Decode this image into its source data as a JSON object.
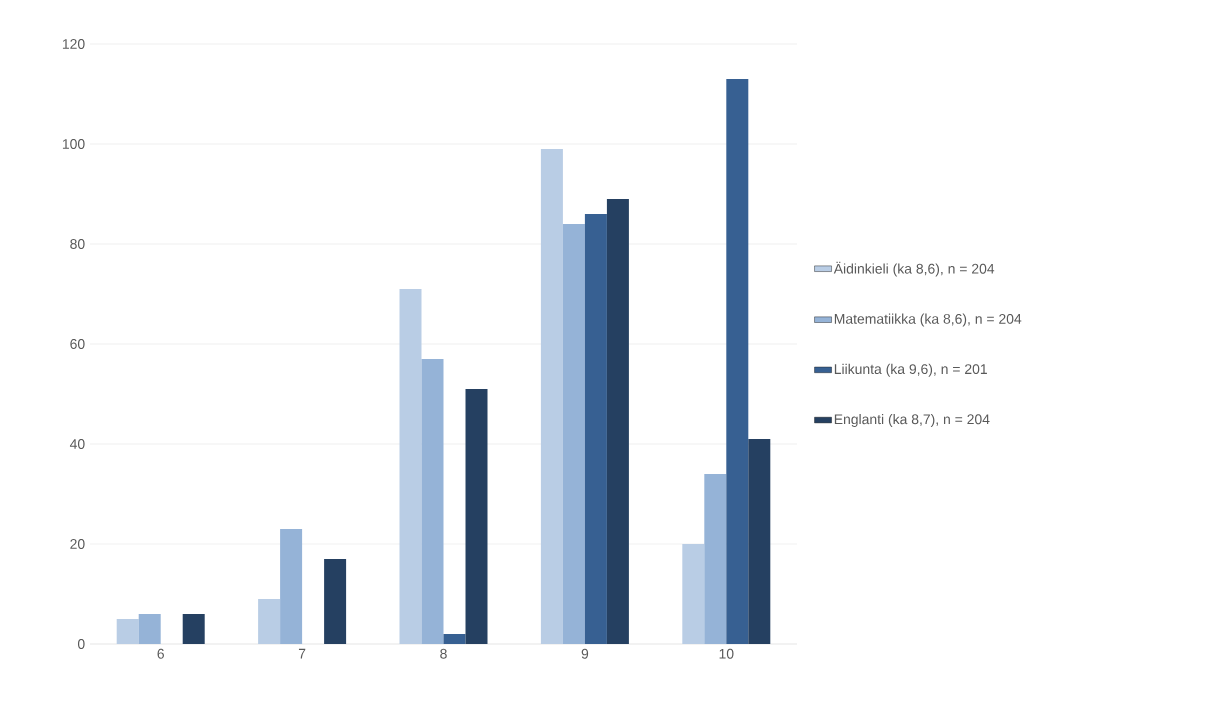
{
  "chart_data": {
    "type": "bar",
    "categories": [
      "6",
      "7",
      "8",
      "9",
      "10"
    ],
    "series": [
      {
        "name": "Äidinkieli (ka 8,6), n = 204",
        "color": "#b9cde5",
        "values": [
          5,
          9,
          71,
          99,
          20
        ]
      },
      {
        "name": "Matematiikka (ka 8,6), n = 204",
        "color": "#95b3d7",
        "values": [
          6,
          23,
          57,
          84,
          34
        ]
      },
      {
        "name": "Liikunta (ka 9,6), n = 201",
        "color": "#376092",
        "values": [
          0,
          0,
          2,
          86,
          113
        ]
      },
      {
        "name": "Englanti (ka 8,7), n = 204",
        "color": "#254061",
        "values": [
          6,
          17,
          51,
          89,
          41
        ]
      }
    ],
    "ylim": [
      0,
      120
    ],
    "yticks": [
      0,
      20,
      40,
      60,
      80,
      100,
      120
    ],
    "grid": "y",
    "legend": "right"
  }
}
